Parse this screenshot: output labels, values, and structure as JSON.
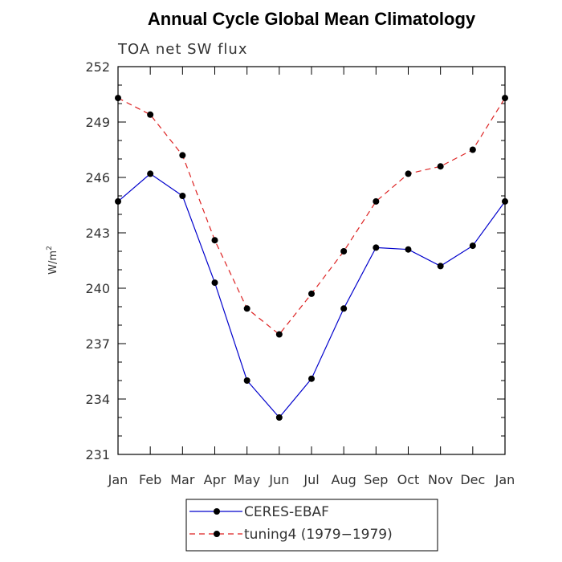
{
  "chart_data": {
    "type": "line",
    "title": "Annual Cycle Global Mean Climatology",
    "subtitle": "TOA net SW flux",
    "ylabel_base": "W/m",
    "ylabel_sup": "2",
    "xlabel": "",
    "categories": [
      "Jan",
      "Feb",
      "Mar",
      "Apr",
      "May",
      "Jun",
      "Jul",
      "Aug",
      "Sep",
      "Oct",
      "Nov",
      "Dec",
      "Jan"
    ],
    "ylim": [
      231,
      252
    ],
    "yticks": [
      "231",
      "234",
      "237",
      "240",
      "243",
      "246",
      "249",
      "252"
    ],
    "grid": false,
    "legend_position": "bottom",
    "series": [
      {
        "name": "CERES-EBAF",
        "color": "#0000cc",
        "dash": "solid",
        "marker": "circle",
        "values": [
          244.7,
          246.2,
          245.0,
          240.3,
          235.0,
          233.0,
          235.1,
          238.9,
          242.2,
          242.1,
          241.2,
          242.3,
          244.7
        ]
      },
      {
        "name": "tuning4 (1979−1979)",
        "color": "#dd2222",
        "dash": "dashed",
        "marker": "circle",
        "values": [
          250.3,
          249.4,
          247.2,
          242.6,
          238.9,
          237.5,
          239.7,
          242.0,
          244.7,
          246.2,
          246.6,
          247.5,
          250.3
        ]
      }
    ]
  }
}
